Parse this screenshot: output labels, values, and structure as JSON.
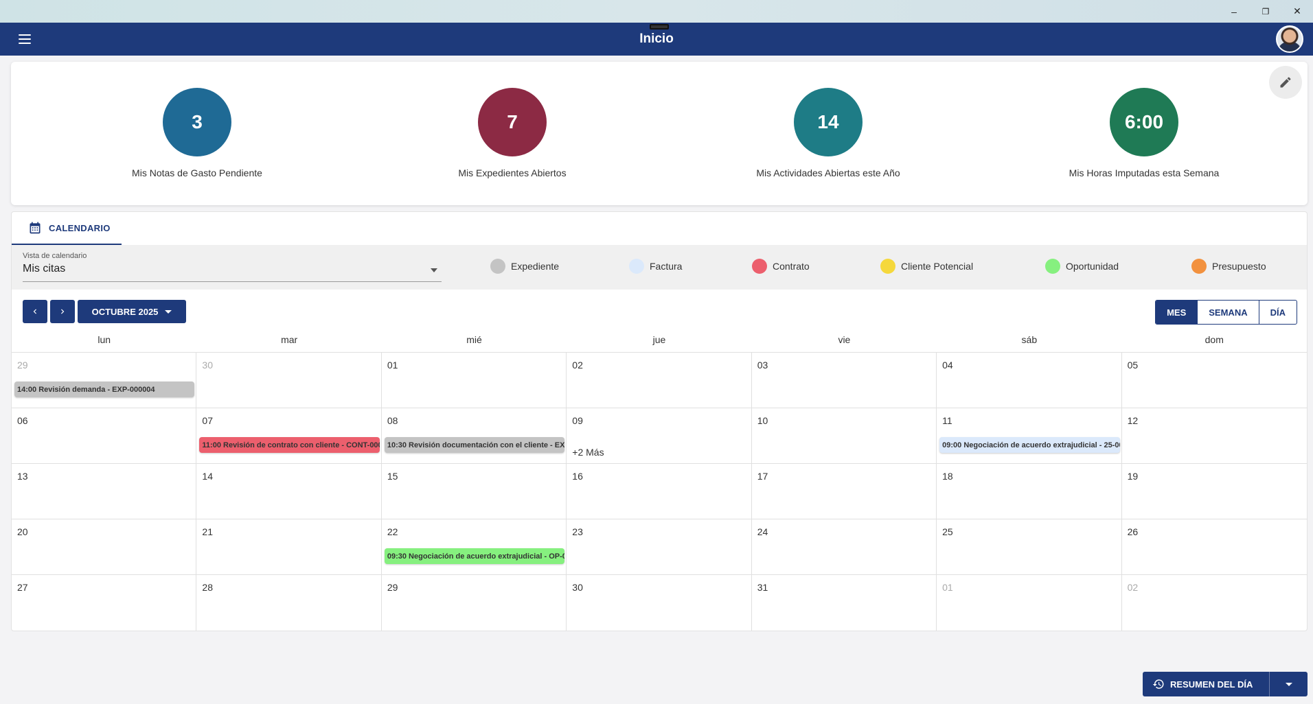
{
  "window": {
    "minimize": "–",
    "restore": "❐",
    "close": "✕"
  },
  "header": {
    "title": "Inicio",
    "menu_icon": "hamburger-icon",
    "avatar_icon": "user-avatar"
  },
  "kpis": [
    {
      "value": "3",
      "label": "Mis Notas de Gasto Pendiente",
      "color": "#1f6a95"
    },
    {
      "value": "7",
      "label": "Mis Expedientes Abiertos",
      "color": "#8c2a44"
    },
    {
      "value": "14",
      "label": "Mis Actividades Abiertas este Año",
      "color": "#1e7c86"
    },
    {
      "value": "6:00",
      "label": "Mis Horas Imputadas esta Semana",
      "color": "#1f7a55"
    }
  ],
  "calendar": {
    "tab_label": "CALENDARIO",
    "view_select": {
      "label": "Vista de calendario",
      "value": "Mis citas"
    },
    "legend": [
      {
        "label": "Expediente",
        "color": "#c4c4c4"
      },
      {
        "label": "Factura",
        "color": "#dbe9fb"
      },
      {
        "label": "Contrato",
        "color": "#ec5f6d"
      },
      {
        "label": "Cliente Potencial",
        "color": "#f5d83c"
      },
      {
        "label": "Oportunidad",
        "color": "#86f07f"
      },
      {
        "label": "Presupuesto",
        "color": "#f2913e"
      }
    ],
    "month_label": "OCTUBRE 2025",
    "views": {
      "month": "MES",
      "week": "SEMANA",
      "day": "DÍA"
    },
    "weekdays": [
      "lun",
      "mar",
      "mié",
      "jue",
      "vie",
      "sáb",
      "dom"
    ],
    "days": [
      [
        "29",
        "30",
        "01",
        "02",
        "03",
        "04",
        "05"
      ],
      [
        "06",
        "07",
        "08",
        "09",
        "10",
        "11",
        "12"
      ],
      [
        "13",
        "14",
        "15",
        "16",
        "17",
        "18",
        "19"
      ],
      [
        "20",
        "21",
        "22",
        "23",
        "24",
        "25",
        "26"
      ],
      [
        "27",
        "28",
        "29",
        "30",
        "31",
        "01",
        "02"
      ]
    ],
    "events": {
      "w0_lun": {
        "text": "14:00 Revisión demanda - EXP-000004",
        "color": "#c4c4c4"
      },
      "w1_mar": {
        "text": "11:00 Revisión de contrato con cliente - CONT-000",
        "color": "#ec5f6d"
      },
      "w1_mie": {
        "text": "10:30 Revisión documentación con el cliente - EXP",
        "color": "#c4c4c4"
      },
      "w1_sab": {
        "text": "09:00 Negociación de acuerdo extrajudicial - 25-00",
        "color": "#dbe9fb"
      },
      "w3_mie": {
        "text": "09:30 Negociación de acuerdo extrajudicial - OP-0",
        "color": "#86f07f"
      }
    },
    "more_link": "+2 Más"
  },
  "summary_button": {
    "label": "RESUMEN DEL DÍA"
  }
}
